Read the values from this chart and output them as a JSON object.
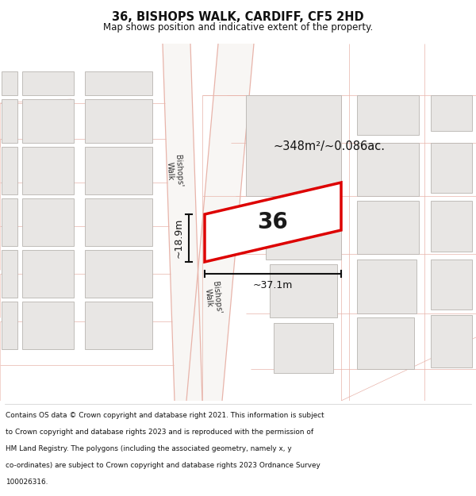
{
  "title_line1": "36, BISHOPS WALK, CARDIFF, CF5 2HD",
  "title_line2": "Map shows position and indicative extent of the property.",
  "footer_text": "Contains OS data © Crown copyright and database right 2021. This information is subject to Crown copyright and database rights 2023 and is reproduced with the permission of HM Land Registry. The polygons (including the associated geometry, namely x, y co-ordinates) are subject to Crown copyright and database rights 2023 Ordnance Survey 100026316.",
  "area_label": "~348m²/~0.086ac.",
  "width_label": "~37.1m",
  "height_label": "~18.9m",
  "number_label": "36",
  "map_bg": "#ffffff",
  "building_color": "#e8e6e4",
  "building_edge": "#b8b4b0",
  "road_fill": "#f5f0ee",
  "pink": "#e8b4aa",
  "highlight_red": "#dd0000",
  "dim_color": "#111111",
  "road_label_color": "#333333"
}
